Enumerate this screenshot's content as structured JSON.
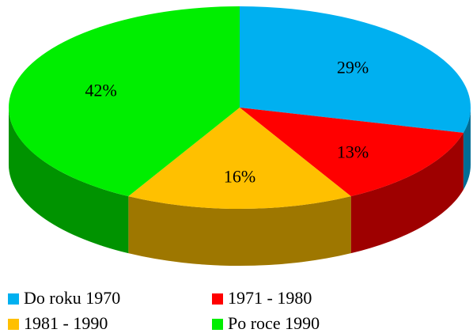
{
  "chart_data": {
    "type": "pie",
    "categories": [
      "Do roku 1970",
      "1971 - 1980",
      "1981 - 1990",
      "Po roce 1990"
    ],
    "values": [
      29,
      13,
      16,
      42
    ],
    "value_labels": [
      "29%",
      "13%",
      "16%",
      "42%"
    ],
    "colors": [
      "#00b0f0",
      "#ff0000",
      "#ffc000",
      "#00ee00"
    ],
    "legend": "bottom"
  }
}
